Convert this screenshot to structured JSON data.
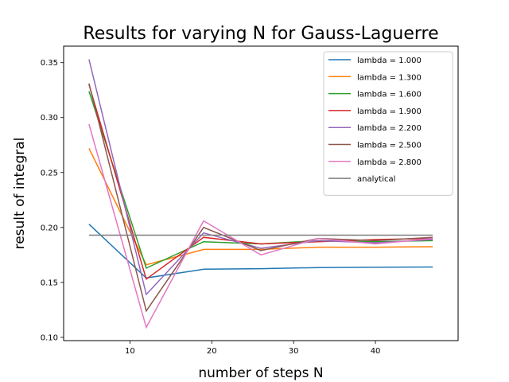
{
  "chart_data": {
    "type": "line",
    "title": "Results for varying N for Gauss-Laguerre",
    "xlabel": "number of steps N",
    "ylabel": "result of integral",
    "xlim": [
      1.9,
      50.1
    ],
    "ylim": [
      0.097,
      0.365
    ],
    "xticks": [
      10,
      20,
      30,
      40
    ],
    "yticks": [
      0.1,
      0.15,
      0.2,
      0.25,
      0.3,
      0.35
    ],
    "xtick_labels": [
      "10",
      "20",
      "30",
      "40"
    ],
    "ytick_labels": [
      "0.10",
      "0.15",
      "0.20",
      "0.25",
      "0.30",
      "0.35"
    ],
    "grid": false,
    "legend_position": "top-right",
    "x": [
      5,
      12,
      19,
      26,
      33,
      40,
      47
    ],
    "series": [
      {
        "name": "lambda = 1.000",
        "color": "#1f77b4",
        "values": [
          0.203,
          0.154,
          0.162,
          0.1625,
          0.1635,
          0.1638,
          0.164
        ]
      },
      {
        "name": "lambda = 1.300",
        "color": "#ff7f0e",
        "values": [
          0.272,
          0.166,
          0.18,
          0.18,
          0.182,
          0.182,
          0.1825
        ]
      },
      {
        "name": "lambda = 1.600",
        "color": "#2ca02c",
        "values": [
          0.324,
          0.163,
          0.187,
          0.185,
          0.188,
          0.187,
          0.188
        ]
      },
      {
        "name": "lambda = 1.900",
        "color": "#d62728",
        "values": [
          0.33,
          0.153,
          0.191,
          0.185,
          0.187,
          0.189,
          0.19
        ]
      },
      {
        "name": "lambda = 2.200",
        "color": "#9467bd",
        "values": [
          0.353,
          0.139,
          0.195,
          0.181,
          0.188,
          0.186,
          0.189
        ]
      },
      {
        "name": "lambda = 2.500",
        "color": "#8c564b",
        "values": [
          0.331,
          0.124,
          0.2,
          0.179,
          0.19,
          0.188,
          0.191
        ]
      },
      {
        "name": "lambda = 2.800",
        "color": "#e377c2",
        "values": [
          0.294,
          0.109,
          0.206,
          0.175,
          0.19,
          0.185,
          0.19
        ]
      },
      {
        "name": "analytical",
        "color": "#7f7f7f",
        "values": [
          0.193,
          0.193,
          0.193,
          0.193,
          0.193,
          0.193,
          0.193
        ]
      }
    ]
  }
}
